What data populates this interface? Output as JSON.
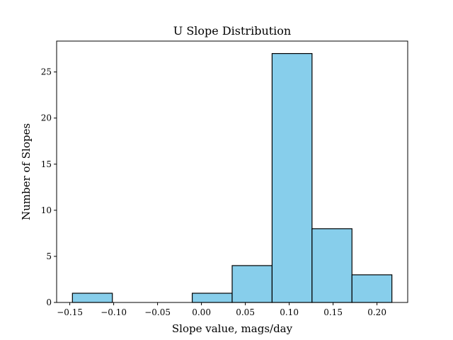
{
  "chart_data": {
    "type": "bar",
    "title": "U Slope Distribution",
    "xlabel": "Slope value, mags/day",
    "ylabel": "Number of Slopes",
    "bins": [
      {
        "start": -0.147,
        "end": -0.1015,
        "count": 1
      },
      {
        "start": -0.1015,
        "end": -0.056,
        "count": 0
      },
      {
        "start": -0.056,
        "end": -0.0105,
        "count": 0
      },
      {
        "start": -0.0105,
        "end": 0.035,
        "count": 1
      },
      {
        "start": 0.035,
        "end": 0.0805,
        "count": 4
      },
      {
        "start": 0.0805,
        "end": 0.126,
        "count": 27
      },
      {
        "start": 0.126,
        "end": 0.1715,
        "count": 8
      },
      {
        "start": 0.1715,
        "end": 0.217,
        "count": 3
      }
    ],
    "xlim": [
      -0.165,
      0.235
    ],
    "ylim": [
      0,
      28.35
    ],
    "xticks": [
      -0.15,
      -0.1,
      -0.05,
      0.0,
      0.05,
      0.1,
      0.15,
      0.2
    ],
    "xtick_labels": [
      "−0.15",
      "−0.10",
      "−0.05",
      "0.00",
      "0.05",
      "0.10",
      "0.15",
      "0.20"
    ],
    "yticks": [
      0,
      5,
      10,
      15,
      20,
      25
    ],
    "ytick_labels": [
      "0",
      "5",
      "10",
      "15",
      "20",
      "25"
    ],
    "bar_color": "#87CEEB",
    "edge_color": "#000000",
    "grid": false
  }
}
